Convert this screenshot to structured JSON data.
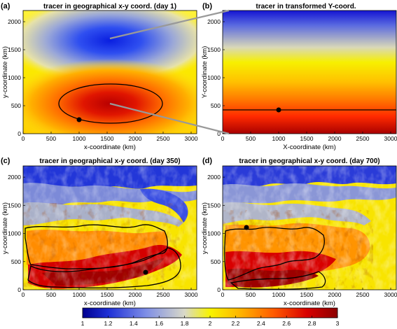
{
  "panels": [
    {
      "letter": "(a)",
      "title": "tracer in geographical x-y coord. (day 1)",
      "xlabel": "x-coordinate (km)",
      "ylabel": "y-coordinate (km)"
    },
    {
      "letter": "(b)",
      "title": "tracer in transformed Y-coord.",
      "xlabel": "X-coordinate (km)",
      "ylabel": "Y-coordinate (km)"
    },
    {
      "letter": "(c)",
      "title": "tracer in geographical x-y coord. (day 350)",
      "xlabel": "x-coordinate (km)",
      "ylabel": "y-coordinate (km)"
    },
    {
      "letter": "(d)",
      "title": "tracer in geographical x-y coord. (day 700)",
      "xlabel": "x-coordinate (km)",
      "ylabel": "y-coordinate (km)"
    }
  ],
  "chart_data": {
    "type": "heatmap",
    "panel_count": 4,
    "x_ticks": [
      0,
      500,
      1000,
      1500,
      2000,
      2500,
      3000
    ],
    "y_ticks": [
      0,
      500,
      1000,
      1500,
      2000
    ],
    "xlim": [
      0,
      3100
    ],
    "ylim": [
      0,
      2200
    ],
    "colorbar": {
      "ticks": [
        "1",
        "1.2",
        "1.4",
        "1.6",
        "1.8",
        "2",
        "2.2",
        "2.4",
        "2.6",
        "2.8",
        "3"
      ],
      "range": [
        1,
        3
      ],
      "colors": [
        "#00008f",
        "#1e2fd6",
        "#7f8fe6",
        "#d9d9c8",
        "#f8f400",
        "#ffb300",
        "#ff5a00",
        "#d80000",
        "#8c0000"
      ]
    },
    "marker_points": {
      "a": {
        "x": 1000,
        "y": 300
      },
      "b": {
        "x": 1000,
        "y": 450
      },
      "c": {
        "x": 2200,
        "y": 330
      },
      "d": {
        "x": 430,
        "y": 1100
      }
    },
    "contour_b_y": 450
  }
}
